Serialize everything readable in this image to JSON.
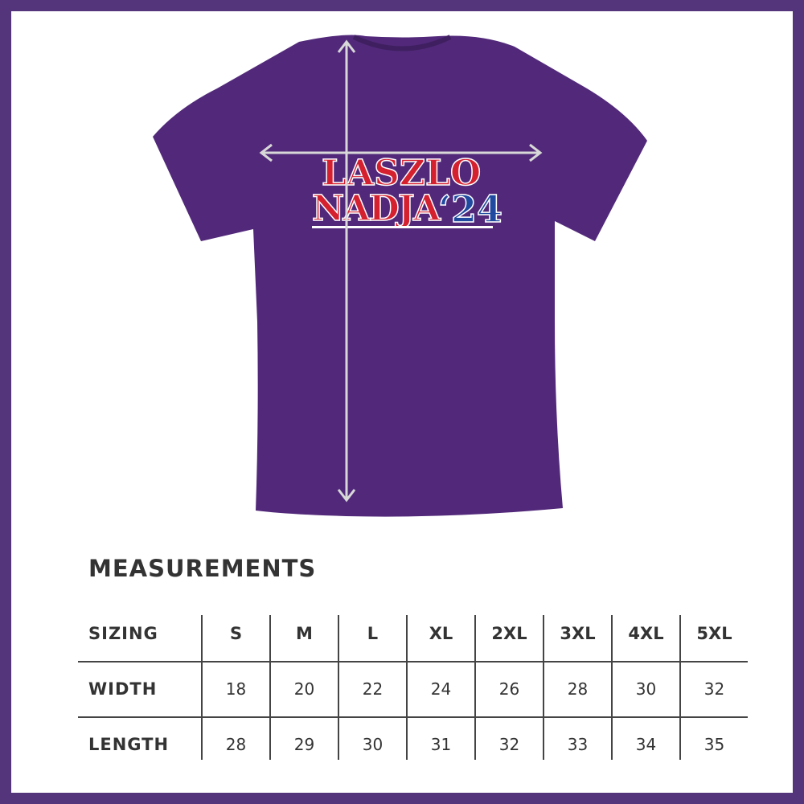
{
  "shirt": {
    "color": "#52297a",
    "graphic_line1": "LASZLO",
    "graphic_line2": "NADJA",
    "graphic_year": "‘24",
    "red": "#d4202f",
    "blue": "#1f4aa0"
  },
  "measurements": {
    "title": "MEASUREMENTS",
    "header_label": "SIZING",
    "sizes": [
      "S",
      "M",
      "L",
      "XL",
      "2XL",
      "3XL",
      "4XL",
      "5XL"
    ],
    "rows": [
      {
        "label": "WIDTH",
        "values": [
          "18",
          "20",
          "22",
          "24",
          "26",
          "28",
          "30",
          "32"
        ]
      },
      {
        "label": "LENGTH",
        "values": [
          "28",
          "29",
          "30",
          "31",
          "32",
          "33",
          "34",
          "35"
        ]
      }
    ]
  }
}
